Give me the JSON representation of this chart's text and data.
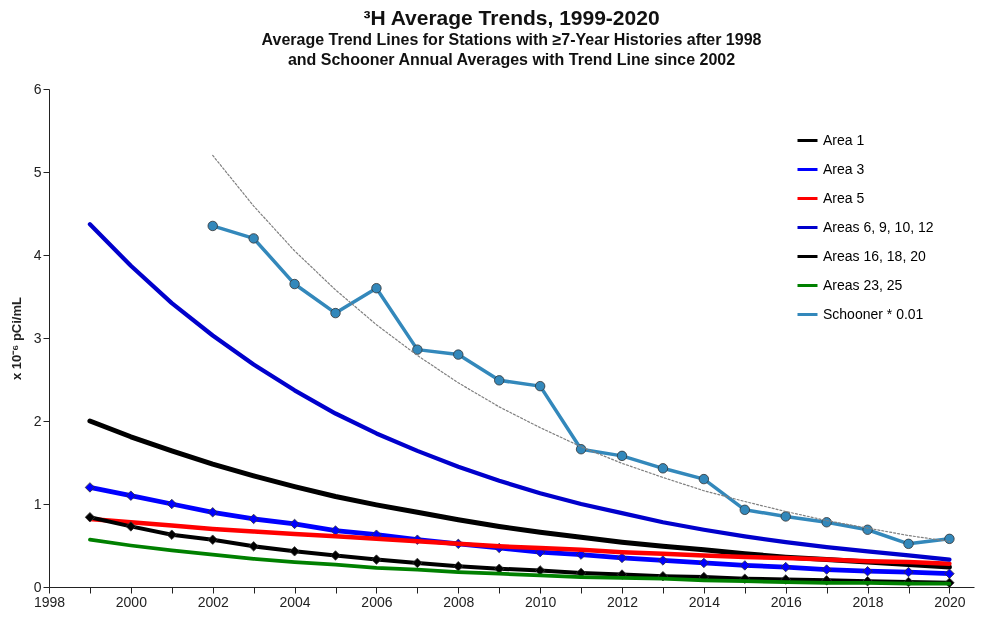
{
  "chart_data": {
    "type": "line",
    "title": "³H Average Trends, 1999-2020",
    "subtitle": "Average Trend Lines for Stations with ≥7-Year Histories after 1998\nand Schooner Annual Averages with Trend Line since 2002",
    "ylabel": "x 10⁻⁶ pCi/mL",
    "xlim": [
      1998,
      2020.6
    ],
    "xticks": [
      1998,
      {
        "value": 1999,
        "label": null
      },
      2000,
      {
        "value": 2001,
        "label": null
      },
      2002,
      {
        "value": 2003,
        "label": null
      },
      2004,
      {
        "value": 2005,
        "label": null
      },
      2006,
      {
        "value": 2007,
        "label": null
      },
      2008,
      {
        "value": 2009,
        "label": null
      },
      2010,
      {
        "value": 2011,
        "label": null
      },
      2012,
      {
        "value": 2013,
        "label": null
      },
      2014,
      {
        "value": 2015,
        "label": null
      },
      2016,
      {
        "value": 2017,
        "label": null
      },
      2018,
      {
        "value": 2019,
        "label": null
      },
      2020
    ],
    "ylim": [
      0,
      6
    ],
    "yticks": [
      0,
      1,
      2,
      3,
      4,
      5,
      6
    ],
    "grid": false,
    "legend": "top right",
    "series": [
      {
        "name": "Area 1",
        "color": "#000000",
        "marker": "none",
        "x": [
          1999,
          2000,
          2001,
          2002,
          2003,
          2004,
          2005,
          2006,
          2007,
          2008,
          2009,
          2010,
          2011,
          2012,
          2013,
          2014,
          2015,
          2016,
          2017,
          2018,
          2019,
          2020
        ],
        "values": [
          2.0,
          1.81,
          1.64,
          1.48,
          1.34,
          1.21,
          1.09,
          0.99,
          0.9,
          0.81,
          0.73,
          0.66,
          0.6,
          0.54,
          0.49,
          0.45,
          0.4,
          0.36,
          0.33,
          0.3,
          0.27,
          0.24
        ]
      },
      {
        "name": "Area 3",
        "color": "#0000ff",
        "marker": "diamond",
        "x": [
          1999,
          2000,
          2001,
          2002,
          2003,
          2004,
          2005,
          2006,
          2007,
          2008,
          2009,
          2010,
          2011,
          2012,
          2013,
          2014,
          2015,
          2016,
          2017,
          2018,
          2019,
          2020
        ],
        "values": [
          1.2,
          1.1,
          1.0,
          0.9,
          0.82,
          0.76,
          0.68,
          0.63,
          0.57,
          0.52,
          0.47,
          0.42,
          0.39,
          0.35,
          0.32,
          0.29,
          0.26,
          0.24,
          0.21,
          0.19,
          0.18,
          0.16
        ]
      },
      {
        "name": "Area 5",
        "color": "#ff0000",
        "marker": "none",
        "x": [
          1999,
          2000,
          2001,
          2002,
          2003,
          2004,
          2005,
          2006,
          2007,
          2008,
          2009,
          2010,
          2011,
          2012,
          2013,
          2014,
          2015,
          2016,
          2017,
          2018,
          2019,
          2020
        ],
        "values": [
          0.82,
          0.78,
          0.74,
          0.7,
          0.67,
          0.64,
          0.61,
          0.58,
          0.55,
          0.52,
          0.49,
          0.47,
          0.45,
          0.42,
          0.4,
          0.38,
          0.36,
          0.35,
          0.33,
          0.31,
          0.3,
          0.28
        ]
      },
      {
        "name": "Areas 6, 9, 10, 12",
        "color": "#0000cc",
        "marker": "none",
        "x": [
          1999,
          2000,
          2001,
          2002,
          2003,
          2004,
          2005,
          2006,
          2007,
          2008,
          2009,
          2010,
          2011,
          2012,
          2013,
          2014,
          2015,
          2016,
          2017,
          2018,
          2019,
          2020
        ],
        "values": [
          4.37,
          3.87,
          3.42,
          3.03,
          2.68,
          2.37,
          2.09,
          1.85,
          1.64,
          1.45,
          1.28,
          1.13,
          1.0,
          0.89,
          0.78,
          0.69,
          0.61,
          0.54,
          0.48,
          0.43,
          0.38,
          0.33
        ]
      },
      {
        "name": "Areas 16, 18, 20",
        "color": "#000000",
        "marker": "diamond",
        "x": [
          1999,
          2000,
          2001,
          2002,
          2003,
          2004,
          2005,
          2006,
          2007,
          2008,
          2009,
          2010,
          2011,
          2012,
          2013,
          2014,
          2015,
          2016,
          2017,
          2018,
          2019,
          2020
        ],
        "values": [
          0.84,
          0.73,
          0.63,
          0.57,
          0.49,
          0.43,
          0.38,
          0.33,
          0.29,
          0.25,
          0.22,
          0.2,
          0.17,
          0.15,
          0.13,
          0.12,
          0.1,
          0.09,
          0.08,
          0.07,
          0.06,
          0.05
        ]
      },
      {
        "name": "Areas 23, 25",
        "color": "#008000",
        "marker": "none",
        "x": [
          1999,
          2000,
          2001,
          2002,
          2003,
          2004,
          2005,
          2006,
          2007,
          2008,
          2009,
          2010,
          2011,
          2012,
          2013,
          2014,
          2015,
          2016,
          2017,
          2018,
          2019,
          2020
        ],
        "values": [
          0.57,
          0.5,
          0.44,
          0.39,
          0.34,
          0.3,
          0.27,
          0.23,
          0.21,
          0.18,
          0.16,
          0.14,
          0.12,
          0.11,
          0.1,
          0.08,
          0.07,
          0.06,
          0.05,
          0.05,
          0.04,
          0.04
        ]
      },
      {
        "name": "Schooner * 0.01",
        "color": "#3388bb",
        "marker": "circle",
        "x": [
          2002,
          2003,
          2004,
          2005,
          2006,
          2007,
          2008,
          2009,
          2010,
          2011,
          2012,
          2013,
          2014,
          2015,
          2016,
          2017,
          2018,
          2019,
          2020
        ],
        "values": [
          4.35,
          4.2,
          3.65,
          3.3,
          3.6,
          2.86,
          2.8,
          2.49,
          2.42,
          1.66,
          1.58,
          1.43,
          1.3,
          0.93,
          0.85,
          0.78,
          0.69,
          0.52,
          0.58
        ]
      },
      {
        "type": "line",
        "color": "#808080",
        "marker": "none",
        "line_style": "dotted",
        "x": [
          2002,
          2003,
          2004,
          2005,
          2006,
          2007,
          2008,
          2009,
          2010,
          2011,
          2012,
          2013,
          2014,
          2015,
          2016,
          2017,
          2018,
          2019,
          2020
        ],
        "values": [
          5.2,
          4.59,
          4.05,
          3.58,
          3.16,
          2.79,
          2.46,
          2.17,
          1.92,
          1.69,
          1.49,
          1.32,
          1.16,
          1.03,
          0.91,
          0.8,
          0.71,
          0.62,
          0.55
        ]
      }
    ]
  }
}
